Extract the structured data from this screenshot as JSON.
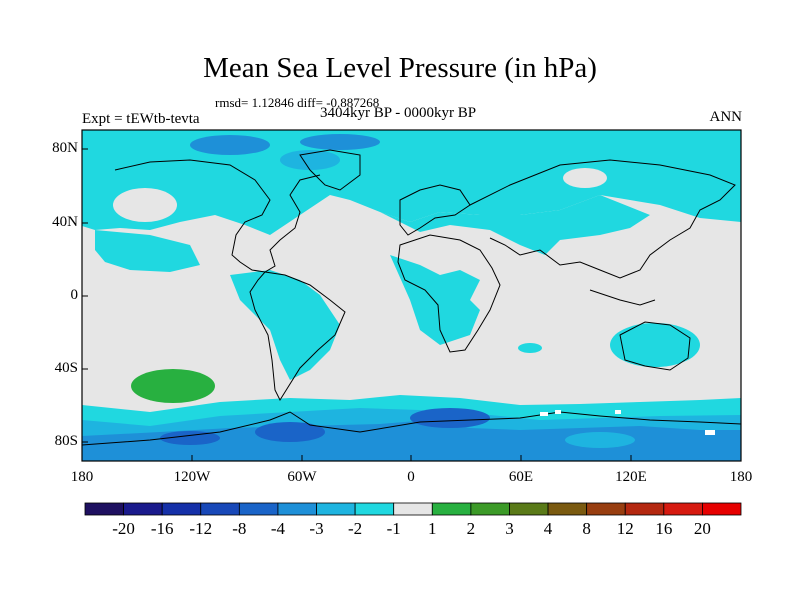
{
  "header": {
    "title": "Mean Sea Level Pressure (in hPa)",
    "stats": "rmsd= 1.12846 diff= -0.887268",
    "experiment": "Expt = tEWtb-tevta",
    "period": "3404kyr BP - 0000kyr BP",
    "season": "ANN"
  },
  "axes": {
    "lat_labels": [
      "80N",
      "40N",
      "0",
      "40S",
      "80S"
    ],
    "lon_labels": [
      "180",
      "120W",
      "60W",
      "0",
      "60E",
      "120E",
      "180"
    ]
  },
  "colorbar": {
    "labels": [
      "-20",
      "-16",
      "-12",
      "-8",
      "-4",
      "-3",
      "-2",
      "-1",
      "1",
      "2",
      "3",
      "4",
      "8",
      "12",
      "16",
      "20"
    ],
    "colors": [
      "#1e1060",
      "#1a1a8c",
      "#1530a8",
      "#1848b8",
      "#1a64c8",
      "#1e90d8",
      "#1eb4e0",
      "#20d8e0",
      "#e6e6e6",
      "#28b040",
      "#3c9a28",
      "#5a7a18",
      "#7a5a10",
      "#983e10",
      "#b42810",
      "#d61a10",
      "#e60000"
    ]
  },
  "colors": {
    "neutral": "#e6e6e6",
    "light_blue": "#20d8e0",
    "mid_blue": "#1eb4e0",
    "blue": "#1e90d8",
    "dark_blue": "#1a64c8",
    "green": "#28b040"
  }
}
